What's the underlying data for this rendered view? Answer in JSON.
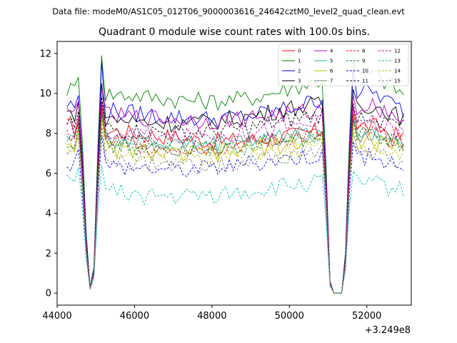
{
  "chart_data": {
    "type": "line",
    "suptitle": "Data file: modeM0/AS1C05_012T06_9000003616_24642cztM0_level2_quad_clean.evt",
    "title": "Quadrant 0 module wise count rates with 100.0s bins.",
    "xlabel": "",
    "ylabel": "",
    "offset_text": "+3.249e8",
    "xlim": [
      44000,
      53150
    ],
    "ylim": [
      -0.6,
      12.6
    ],
    "xticks": [
      44000,
      46000,
      48000,
      50000,
      52000
    ],
    "xtick_labels": [
      "44000",
      "46000",
      "48000",
      "50000",
      "52000"
    ],
    "yticks": [
      0,
      2,
      4,
      6,
      8,
      10,
      12
    ],
    "ytick_labels": [
      "0",
      "2",
      "4",
      "6",
      "8",
      "10",
      "12"
    ],
    "x_start": 44250,
    "x_step": 100,
    "grid": false,
    "legend_position": "upper-right",
    "legend_columns": 4,
    "series": [
      {
        "name": "0",
        "color": "#ff0000",
        "dash": "solid",
        "base": 8.2,
        "spike": 9.6,
        "trend": [
          8.4,
          8.2,
          8.0,
          7.8,
          7.6,
          7.7,
          7.9,
          8.2,
          8.4,
          7.6
        ]
      },
      {
        "name": "1",
        "color": "#008000",
        "dash": "solid",
        "base": 10.2,
        "spike": 11.9,
        "trend": [
          10.3,
          10.0,
          9.9,
          9.7,
          9.6,
          9.8,
          10.3,
          10.8,
          11.0,
          9.7
        ]
      },
      {
        "name": "2",
        "color": "#0000ff",
        "dash": "solid",
        "base": 9.3,
        "spike": 11.6,
        "trend": [
          9.5,
          9.2,
          9.0,
          8.8,
          8.7,
          8.9,
          9.3,
          9.9,
          10.1,
          8.9
        ]
      },
      {
        "name": "3",
        "color": "#000000",
        "dash": "solid",
        "base": 9.0,
        "spike": 10.5,
        "trend": [
          9.1,
          8.8,
          8.6,
          8.5,
          8.6,
          8.9,
          9.3,
          9.5,
          9.4,
          8.6
        ]
      },
      {
        "name": "4",
        "color": "#bf00bf",
        "dash": "solid",
        "base": 9.0,
        "spike": 10.2,
        "trend": [
          9.0,
          8.9,
          8.8,
          8.7,
          8.6,
          8.8,
          9.0,
          9.2,
          9.4,
          8.6
        ]
      },
      {
        "name": "5",
        "color": "#1abc9c",
        "dash": "solid",
        "base": 8.0,
        "spike": 9.0,
        "trend": [
          8.0,
          7.8,
          7.6,
          7.5,
          7.5,
          7.7,
          7.9,
          8.0,
          8.1,
          7.4
        ]
      },
      {
        "name": "6",
        "color": "#bfbf00",
        "dash": "solid",
        "base": 7.7,
        "spike": 8.8,
        "trend": [
          7.7,
          7.3,
          7.1,
          6.9,
          7.0,
          7.2,
          7.5,
          7.7,
          7.6,
          7.1
        ]
      },
      {
        "name": "7",
        "color": "#708070",
        "dash": "solid",
        "base": 7.9,
        "spike": 9.2,
        "trend": [
          7.9,
          7.6,
          7.5,
          7.3,
          7.4,
          7.6,
          7.8,
          8.0,
          8.0,
          7.3
        ]
      },
      {
        "name": "8",
        "color": "#ff0000",
        "dash": "dashed",
        "base": 8.0,
        "spike": 9.3,
        "trend": [
          8.0,
          7.7,
          7.4,
          7.3,
          7.3,
          7.5,
          7.8,
          8.0,
          8.0,
          7.4
        ]
      },
      {
        "name": "9",
        "color": "#008000",
        "dash": "dashed",
        "base": 7.8,
        "spike": 9.0,
        "trend": [
          7.8,
          7.5,
          7.3,
          7.2,
          7.2,
          7.4,
          7.7,
          7.9,
          7.9,
          7.2
        ]
      },
      {
        "name": "10",
        "color": "#0000ff",
        "dash": "dashed",
        "base": 6.6,
        "spike": 7.9,
        "trend": [
          6.6,
          6.4,
          6.3,
          6.2,
          6.3,
          6.5,
          6.8,
          7.0,
          6.8,
          6.2
        ]
      },
      {
        "name": "11",
        "color": "#000000",
        "dash": "dashed",
        "base": 8.5,
        "spike": 9.8,
        "trend": [
          8.5,
          8.3,
          8.1,
          8.0,
          8.1,
          8.3,
          8.7,
          9.0,
          8.9,
          8.1
        ]
      },
      {
        "name": "12",
        "color": "#bf00bf",
        "dash": "dashed",
        "base": 8.3,
        "spike": 9.6,
        "trend": [
          8.3,
          8.1,
          7.9,
          7.8,
          7.9,
          8.1,
          8.4,
          8.6,
          8.6,
          7.9
        ]
      },
      {
        "name": "13",
        "color": "#00bfbf",
        "dash": "dashed",
        "base": 5.7,
        "spike": 6.4,
        "trend": [
          5.6,
          5.2,
          4.9,
          4.8,
          4.9,
          5.1,
          5.4,
          5.6,
          5.5,
          5.0
        ]
      },
      {
        "name": "14",
        "color": "#bfbf00",
        "dash": "dashed",
        "base": 7.4,
        "spike": 8.6,
        "trend": [
          7.3,
          7.0,
          6.9,
          6.8,
          6.8,
          7.0,
          7.2,
          7.4,
          7.3,
          6.8
        ]
      },
      {
        "name": "15",
        "color": "#808080",
        "dash": "dashed",
        "base": 7.2,
        "spike": 8.3,
        "trend": [
          7.1,
          6.8,
          6.5,
          6.3,
          6.4,
          6.6,
          6.9,
          7.2,
          7.0,
          6.5
        ]
      }
    ],
    "gaps": [
      {
        "pattern": [
          0.75,
          0.3,
          0.03,
          0.13,
          0.7
        ]
      },
      {
        "pattern": [
          0.62,
          0.06,
          0.0,
          0.0,
          0.0,
          0.2,
          0.75
        ]
      }
    ],
    "gap_starts": [
      44650,
      50950
    ],
    "n_points": 88
  },
  "colors": {
    "background": "#ffffff",
    "axes": "#000000"
  }
}
